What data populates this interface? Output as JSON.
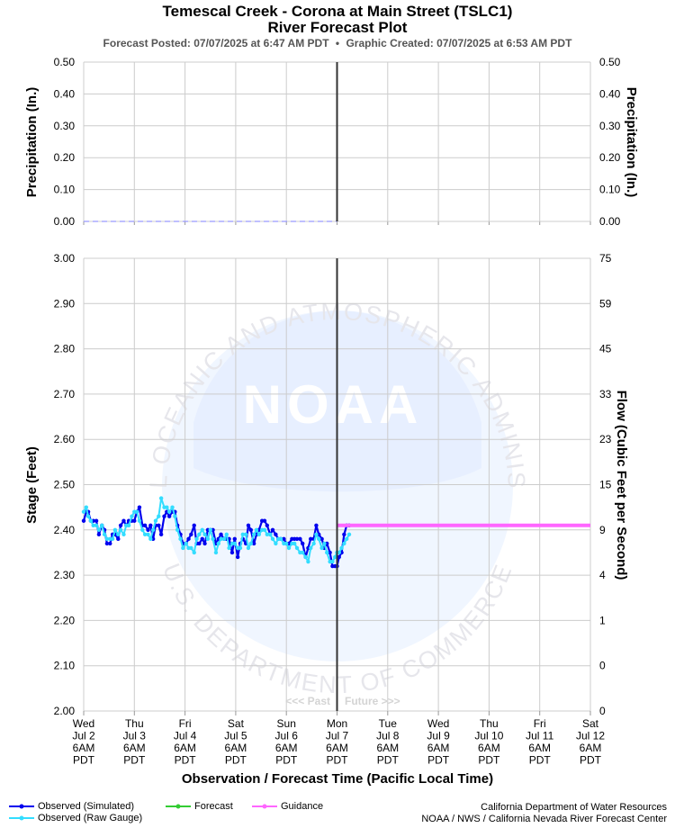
{
  "header": {
    "title": "Temescal Creek - Corona at Main Street (TSLC1)",
    "subtitle": "River Forecast Plot",
    "forecast_posted": "Forecast Posted: 07/07/2025 at 6:47 AM PDT",
    "separator": "•",
    "graphic_created": "Graphic Created: 07/07/2025 at 6:53 AM PDT"
  },
  "watermark": {
    "logo_text": "NOAA",
    "ring_text_top": "NATIONAL OCEANIC AND ATMOSPHERIC ADMINISTRATION",
    "ring_text_bottom": "U.S. DEPARTMENT OF COMMERCE"
  },
  "past_future": {
    "past": "<<< Past",
    "future": "Future >>>"
  },
  "legend": {
    "observed_simulated": "Observed (Simulated)",
    "observed_raw": "Observed (Raw Gauge)",
    "forecast": "Forecast",
    "guidance": "Guidance"
  },
  "footer": {
    "line1": "California Department of Water Resources",
    "line2": "NOAA / NWS / California Nevada River Forecast Center"
  },
  "colors": {
    "observed_simulated": "#0000ee",
    "observed_raw": "#33ddff",
    "forecast": "#33cc33",
    "guidance": "#ff66ff",
    "now_line": "#333333",
    "grid": "#cccccc",
    "precip": "#9999ff"
  },
  "chart_data": [
    {
      "type": "line",
      "panel": "precipitation",
      "ylabel_left": "Precipitation (In.)",
      "ylabel_right": "Precipitation (In.)",
      "ylim": [
        0,
        0.5
      ],
      "yticks": [
        "0.50",
        "0.40",
        "0.30",
        "0.20",
        "0.10",
        "0.00"
      ],
      "series": [
        {
          "name": "precipitation",
          "style": "dashed",
          "values": [
            [
              0,
              0
            ],
            [
              5,
              0
            ]
          ]
        }
      ]
    },
    {
      "type": "line",
      "panel": "stage",
      "xlabel": "Observation / Forecast Time (Pacific Local Time)",
      "xticks": [
        [
          "Wed",
          "Jul 2",
          "6AM",
          "PDT"
        ],
        [
          "Thu",
          "Jul 3",
          "6AM",
          "PDT"
        ],
        [
          "Fri",
          "Jul 4",
          "6AM",
          "PDT"
        ],
        [
          "Sat",
          "Jul 5",
          "6AM",
          "PDT"
        ],
        [
          "Sun",
          "Jul 6",
          "6AM",
          "PDT"
        ],
        [
          "Mon",
          "Jul 7",
          "6AM",
          "PDT"
        ],
        [
          "Tue",
          "Jul 8",
          "6AM",
          "PDT"
        ],
        [
          "Wed",
          "Jul 9",
          "6AM",
          "PDT"
        ],
        [
          "Thu",
          "Jul 10",
          "6AM",
          "PDT"
        ],
        [
          "Fri",
          "Jul 11",
          "6AM",
          "PDT"
        ],
        [
          "Sat",
          "Jul 12",
          "6AM",
          "PDT"
        ]
      ],
      "x_units": "days after Wed Jul 2 6AM PDT",
      "xlim": [
        0,
        10
      ],
      "now_x": 5,
      "ylabel_left": "Stage (Feet)",
      "ylabel_right": "Flow (Cubic Feet per Second)",
      "ylim": [
        2.0,
        3.0
      ],
      "yticks_left": [
        "3.00",
        "2.90",
        "2.80",
        "2.70",
        "2.60",
        "2.50",
        "2.40",
        "2.30",
        "2.20",
        "2.10",
        "2.00"
      ],
      "yticks_right": [
        "75",
        "59",
        "45",
        "33",
        "23",
        "15",
        "9",
        "4",
        "1",
        "0",
        "0"
      ],
      "grid": true,
      "series": [
        {
          "name": "Observed (Simulated)",
          "values": [
            [
              0.0,
              2.42
            ],
            [
              0.05,
              2.44
            ],
            [
              0.09,
              2.44
            ],
            [
              0.14,
              2.42
            ],
            [
              0.19,
              2.42
            ],
            [
              0.25,
              2.42
            ],
            [
              0.3,
              2.39
            ],
            [
              0.36,
              2.41
            ],
            [
              0.41,
              2.4
            ],
            [
              0.46,
              2.37
            ],
            [
              0.52,
              2.37
            ],
            [
              0.57,
              2.39
            ],
            [
              0.62,
              2.39
            ],
            [
              0.68,
              2.38
            ],
            [
              0.73,
              2.41
            ],
            [
              0.79,
              2.42
            ],
            [
              0.84,
              2.41
            ],
            [
              0.89,
              2.42
            ],
            [
              0.95,
              2.42
            ],
            [
              1.0,
              2.42
            ],
            [
              1.05,
              2.44
            ],
            [
              1.1,
              2.45
            ],
            [
              1.16,
              2.41
            ],
            [
              1.21,
              2.41
            ],
            [
              1.27,
              2.4
            ],
            [
              1.32,
              2.41
            ],
            [
              1.37,
              2.38
            ],
            [
              1.42,
              2.41
            ],
            [
              1.48,
              2.41
            ],
            [
              1.53,
              2.39
            ],
            [
              1.59,
              2.43
            ],
            [
              1.64,
              2.44
            ],
            [
              1.69,
              2.43
            ],
            [
              1.75,
              2.44
            ],
            [
              1.8,
              2.44
            ],
            [
              1.85,
              2.41
            ],
            [
              1.91,
              2.39
            ],
            [
              1.96,
              2.37
            ],
            [
              2.02,
              2.37
            ],
            [
              2.07,
              2.38
            ],
            [
              2.12,
              2.39
            ],
            [
              2.18,
              2.41
            ],
            [
              2.23,
              2.37
            ],
            [
              2.28,
              2.37
            ],
            [
              2.34,
              2.38
            ],
            [
              2.39,
              2.37
            ],
            [
              2.45,
              2.4
            ],
            [
              2.5,
              2.4
            ],
            [
              2.55,
              2.4
            ],
            [
              2.61,
              2.37
            ],
            [
              2.66,
              2.38
            ],
            [
              2.71,
              2.39
            ],
            [
              2.77,
              2.38
            ],
            [
              2.82,
              2.38
            ],
            [
              2.87,
              2.38
            ],
            [
              2.93,
              2.35
            ],
            [
              2.98,
              2.38
            ],
            [
              3.04,
              2.34
            ],
            [
              3.09,
              2.37
            ],
            [
              3.14,
              2.38
            ],
            [
              3.2,
              2.37
            ],
            [
              3.25,
              2.41
            ],
            [
              3.3,
              2.4
            ],
            [
              3.36,
              2.37
            ],
            [
              3.41,
              2.39
            ],
            [
              3.46,
              2.4
            ],
            [
              3.52,
              2.42
            ],
            [
              3.57,
              2.42
            ],
            [
              3.62,
              2.41
            ],
            [
              3.68,
              2.39
            ],
            [
              3.73,
              2.4
            ],
            [
              3.79,
              2.39
            ],
            [
              3.84,
              2.38
            ],
            [
              3.89,
              2.38
            ],
            [
              3.95,
              2.38
            ],
            [
              4.0,
              2.37
            ],
            [
              4.05,
              2.37
            ],
            [
              4.11,
              2.38
            ],
            [
              4.16,
              2.38
            ],
            [
              4.21,
              2.38
            ],
            [
              4.27,
              2.38
            ],
            [
              4.32,
              2.37
            ],
            [
              4.38,
              2.34
            ],
            [
              4.43,
              2.36
            ],
            [
              4.48,
              2.38
            ],
            [
              4.54,
              2.38
            ],
            [
              4.59,
              2.41
            ],
            [
              4.64,
              2.39
            ],
            [
              4.7,
              2.38
            ],
            [
              4.75,
              2.36
            ],
            [
              4.8,
              2.37
            ],
            [
              4.86,
              2.35
            ],
            [
              4.91,
              2.32
            ],
            [
              4.96,
              2.32
            ],
            [
              5.0,
              2.32
            ],
            [
              5.04,
              2.34
            ],
            [
              5.09,
              2.35
            ],
            [
              5.14,
              2.39
            ],
            [
              5.19,
              2.41
            ],
            [
              5.24,
              2.41
            ]
          ]
        },
        {
          "name": "Observed (Raw Gauge)",
          "values": [
            [
              0.0,
              2.44
            ],
            [
              0.05,
              2.45
            ],
            [
              0.09,
              2.43
            ],
            [
              0.14,
              2.42
            ],
            [
              0.19,
              2.41
            ],
            [
              0.25,
              2.41
            ],
            [
              0.3,
              2.4
            ],
            [
              0.36,
              2.41
            ],
            [
              0.41,
              2.39
            ],
            [
              0.46,
              2.38
            ],
            [
              0.52,
              2.38
            ],
            [
              0.57,
              2.38
            ],
            [
              0.62,
              2.4
            ],
            [
              0.68,
              2.39
            ],
            [
              0.73,
              2.4
            ],
            [
              0.79,
              2.39
            ],
            [
              0.84,
              2.41
            ],
            [
              0.89,
              2.41
            ],
            [
              0.95,
              2.43
            ],
            [
              1.0,
              2.44
            ],
            [
              1.05,
              2.44
            ],
            [
              1.1,
              2.42
            ],
            [
              1.16,
              2.4
            ],
            [
              1.21,
              2.39
            ],
            [
              1.27,
              2.39
            ],
            [
              1.32,
              2.38
            ],
            [
              1.37,
              2.4
            ],
            [
              1.42,
              2.42
            ],
            [
              1.48,
              2.43
            ],
            [
              1.53,
              2.47
            ],
            [
              1.59,
              2.45
            ],
            [
              1.64,
              2.45
            ],
            [
              1.69,
              2.44
            ],
            [
              1.75,
              2.45
            ],
            [
              1.8,
              2.43
            ],
            [
              1.85,
              2.4
            ],
            [
              1.91,
              2.38
            ],
            [
              1.96,
              2.36
            ],
            [
              2.02,
              2.37
            ],
            [
              2.07,
              2.36
            ],
            [
              2.12,
              2.36
            ],
            [
              2.18,
              2.35
            ],
            [
              2.23,
              2.38
            ],
            [
              2.28,
              2.39
            ],
            [
              2.34,
              2.4
            ],
            [
              2.39,
              2.39
            ],
            [
              2.45,
              2.38
            ],
            [
              2.5,
              2.4
            ],
            [
              2.55,
              2.38
            ],
            [
              2.61,
              2.35
            ],
            [
              2.66,
              2.37
            ],
            [
              2.71,
              2.38
            ],
            [
              2.77,
              2.38
            ],
            [
              2.82,
              2.39
            ],
            [
              2.87,
              2.36
            ],
            [
              2.93,
              2.37
            ],
            [
              2.98,
              2.37
            ],
            [
              3.04,
              2.36
            ],
            [
              3.09,
              2.36
            ],
            [
              3.14,
              2.39
            ],
            [
              3.2,
              2.39
            ],
            [
              3.25,
              2.36
            ],
            [
              3.3,
              2.37
            ],
            [
              3.36,
              2.39
            ],
            [
              3.41,
              2.4
            ],
            [
              3.46,
              2.39
            ],
            [
              3.52,
              2.4
            ],
            [
              3.57,
              2.4
            ],
            [
              3.62,
              2.39
            ],
            [
              3.68,
              2.39
            ],
            [
              3.73,
              2.38
            ],
            [
              3.79,
              2.37
            ],
            [
              3.84,
              2.38
            ],
            [
              3.89,
              2.38
            ],
            [
              3.95,
              2.37
            ],
            [
              4.0,
              2.37
            ],
            [
              4.05,
              2.36
            ],
            [
              4.11,
              2.37
            ],
            [
              4.16,
              2.37
            ],
            [
              4.21,
              2.36
            ],
            [
              4.27,
              2.35
            ],
            [
              4.32,
              2.35
            ],
            [
              4.38,
              2.34
            ],
            [
              4.43,
              2.33
            ],
            [
              4.48,
              2.36
            ],
            [
              4.54,
              2.37
            ],
            [
              4.59,
              2.39
            ],
            [
              4.64,
              2.38
            ],
            [
              4.7,
              2.36
            ],
            [
              4.75,
              2.37
            ],
            [
              4.8,
              2.35
            ],
            [
              4.86,
              2.33
            ],
            [
              4.91,
              2.33
            ],
            [
              4.96,
              2.34
            ],
            [
              5.0,
              2.35
            ],
            [
              5.04,
              2.35
            ],
            [
              5.09,
              2.36
            ],
            [
              5.14,
              2.37
            ],
            [
              5.19,
              2.38
            ],
            [
              5.24,
              2.39
            ]
          ]
        },
        {
          "name": "Guidance",
          "values": [
            [
              5.0,
              2.41
            ],
            [
              10.0,
              2.41
            ]
          ]
        }
      ]
    }
  ]
}
